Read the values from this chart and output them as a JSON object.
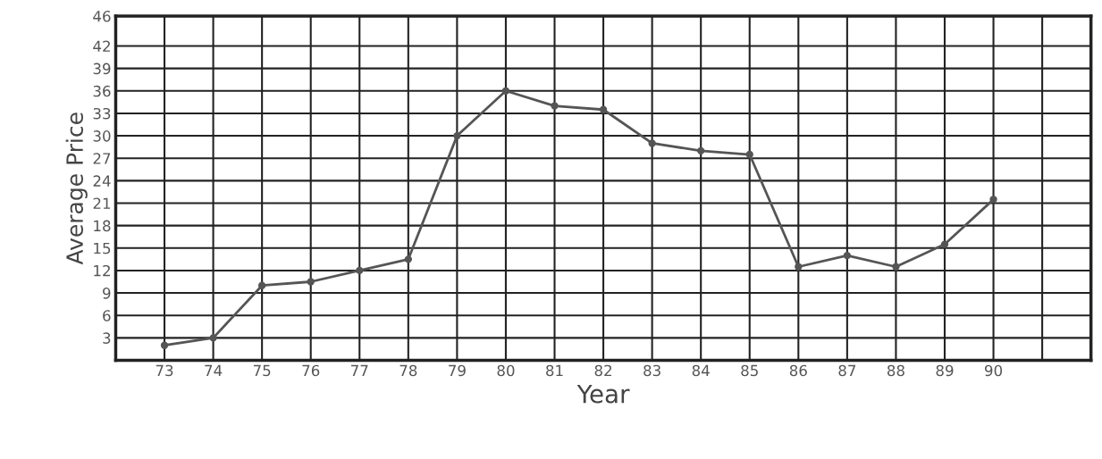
{
  "chart_data": {
    "type": "line",
    "xlabel": "Year",
    "ylabel": "Average Price",
    "x": [
      73,
      74,
      75,
      76,
      77,
      78,
      79,
      80,
      81,
      82,
      83,
      84,
      85,
      86,
      87,
      88,
      89,
      90
    ],
    "series": [
      {
        "color": "#555555",
        "values": [
          2,
          3,
          10,
          10.5,
          12,
          13.5,
          30,
          36,
          34,
          33.5,
          29,
          28,
          27.5,
          12.5,
          14,
          12.5,
          15.5,
          21.5
        ]
      }
    ],
    "xlim": [
      72,
      92
    ],
    "xticks": [
      73,
      74,
      75,
      76,
      77,
      78,
      79,
      80,
      81,
      82,
      83,
      84,
      85,
      86,
      87,
      88,
      89,
      90,
      {
        "value": 91,
        "label": null
      }
    ],
    "ylim": [
      0,
      46
    ],
    "yticks": [
      3,
      6,
      9,
      12,
      15,
      18,
      21,
      24,
      27,
      30,
      33,
      36,
      39,
      42,
      46
    ],
    "grid": true,
    "marker": "circle",
    "line_style": "solid"
  }
}
